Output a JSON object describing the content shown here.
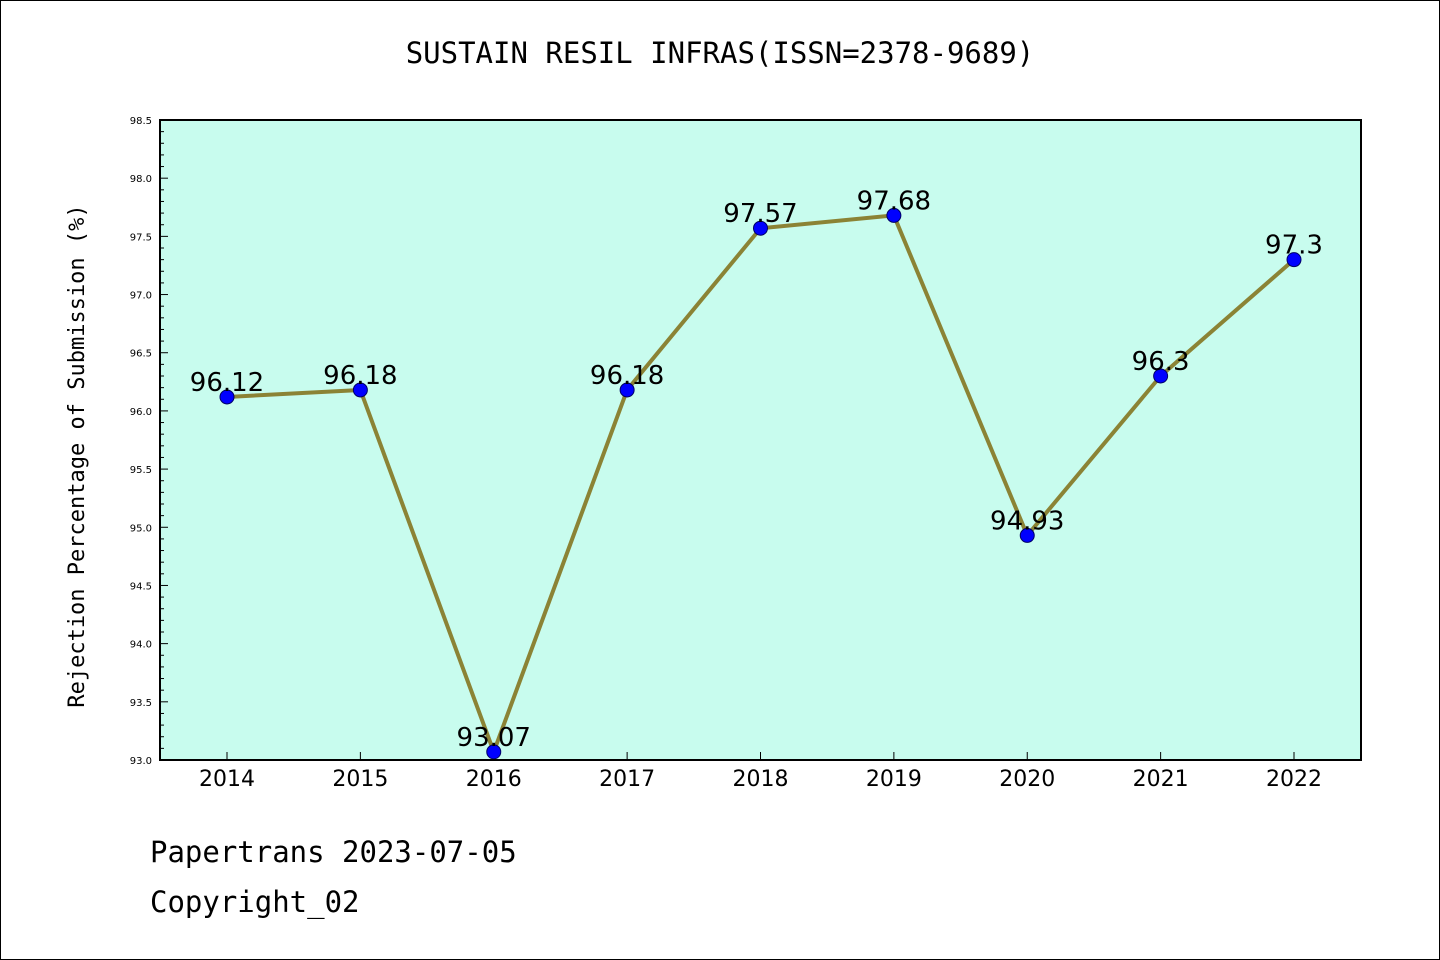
{
  "chart_data": {
    "type": "line",
    "title": "SUSTAIN RESIL INFRAS(ISSN=2378-9689)",
    "xlabel": "",
    "ylabel": "Rejection Percentage of Submission (%)",
    "categories": [
      "2014",
      "2015",
      "2016",
      "2017",
      "2018",
      "2019",
      "2020",
      "2021",
      "2022"
    ],
    "series": [
      {
        "values": [
          96.12,
          96.18,
          93.07,
          96.18,
          97.57,
          97.68,
          94.93,
          96.3,
          97.3
        ],
        "data_labels": [
          "96.12",
          "96.18",
          "93.07",
          "96.18",
          "97.57",
          "97.68",
          "94.93",
          "96.3",
          "97.3"
        ]
      }
    ],
    "ylim": [
      93.0,
      98.5
    ],
    "yticks": [
      "93.0",
      "93.5",
      "94.0",
      "94.5",
      "95.0",
      "95.5",
      "96.0",
      "96.5",
      "97.0",
      "97.5",
      "98.0",
      "98.5"
    ],
    "grid": false,
    "colors": {
      "plot_background": "#c8fcee",
      "line": "#8b8335",
      "marker": "#0000ff"
    }
  },
  "footer": {
    "line1": "Papertrans 2023-07-05",
    "line2": "Copyright_02"
  }
}
